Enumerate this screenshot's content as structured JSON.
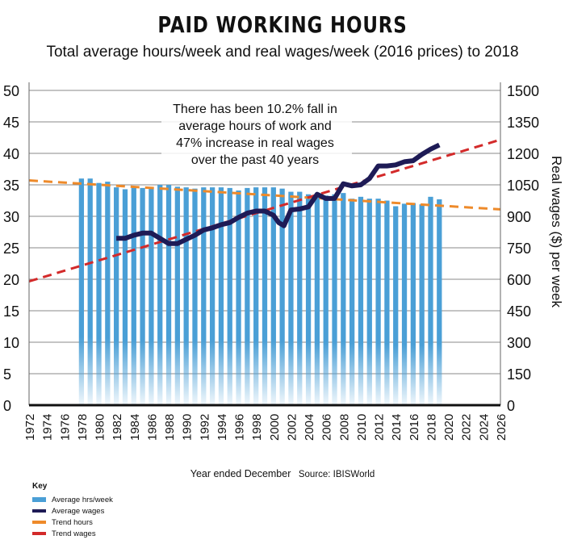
{
  "title": "PAID WORKING HOURS",
  "subtitle": "Total average hours/week and real wages/week (2016 prices) to 2018",
  "x_caption": "Year ended December",
  "source": "Source: IBISWorld",
  "key": {
    "title": "Key",
    "items": [
      {
        "label": "Average hrs/week",
        "color": "#4a9fd6",
        "style": "bar"
      },
      {
        "label": "Average wages",
        "color": "#1e1b56",
        "style": "line"
      },
      {
        "label": "Trend hours",
        "color": "#ee8a2a",
        "style": "line"
      },
      {
        "label": "Trend wages",
        "color": "#d32a2a",
        "style": "line"
      }
    ]
  },
  "chart_data": {
    "type": "bar+line",
    "annotation": [
      "There has been 10.2% fall in",
      "average hours of work and",
      "47% increase in real wages",
      "over the past 40 years"
    ],
    "x_range": [
      1972,
      2026
    ],
    "x_ticks": [
      1972,
      1974,
      1976,
      1978,
      1980,
      1982,
      1984,
      1986,
      1988,
      1990,
      1992,
      1994,
      1996,
      1998,
      2000,
      2002,
      2004,
      2006,
      2008,
      2010,
      2012,
      2014,
      2016,
      2018,
      2020,
      2022,
      2024,
      2026
    ],
    "y_left": {
      "label": "",
      "range": [
        0,
        50
      ],
      "ticks": [
        0,
        5,
        10,
        15,
        20,
        25,
        30,
        35,
        40,
        45,
        50
      ]
    },
    "y_right": {
      "label": "Real wages ($) per week",
      "range": [
        0,
        1500
      ],
      "ticks": [
        0,
        150,
        300,
        450,
        600,
        750,
        900,
        1050,
        1200,
        1350,
        1500
      ]
    },
    "hours": {
      "name": "Average hrs/week",
      "years": [
        1978,
        1979,
        1980,
        1981,
        1982,
        1983,
        1984,
        1985,
        1986,
        1987,
        1988,
        1989,
        1990,
        1991,
        1992,
        1993,
        1994,
        1995,
        1996,
        1997,
        1998,
        1999,
        2000,
        2001,
        2002,
        2003,
        2004,
        2005,
        2006,
        2007,
        2008,
        2009,
        2010,
        2011,
        2012,
        2013,
        2014,
        2015,
        2016,
        2017,
        2018,
        2019
      ],
      "values": [
        36.0,
        36.0,
        35.3,
        35.5,
        34.6,
        34.3,
        34.6,
        34.5,
        34.6,
        35.0,
        35.0,
        34.7,
        34.6,
        34.4,
        34.6,
        34.6,
        34.6,
        34.5,
        34.1,
        34.5,
        34.6,
        34.6,
        34.6,
        34.4,
        33.9,
        33.9,
        33.5,
        33.0,
        33.3,
        33.5,
        33.7,
        32.8,
        33.1,
        32.8,
        32.8,
        32.5,
        31.6,
        32.0,
        32.1,
        31.9,
        33.1,
        32.7
      ]
    },
    "wages": {
      "name": "Average wages",
      "years": [
        1982,
        1983,
        1984,
        1985,
        1986,
        1987,
        1988,
        1989,
        1990,
        1991,
        1992,
        1993,
        1994,
        1995,
        1996,
        1997,
        1998,
        1999,
        2000,
        2000.6,
        2001.2,
        2002,
        2003,
        2004,
        2005,
        2006,
        2007,
        2008,
        2009,
        2010,
        2011,
        2012,
        2013,
        2014,
        2015,
        2016,
        2017,
        2018,
        2019
      ],
      "values": [
        795,
        795,
        810,
        820,
        820,
        795,
        770,
        770,
        790,
        810,
        835,
        845,
        860,
        870,
        895,
        915,
        925,
        925,
        905,
        870,
        855,
        930,
        935,
        945,
        1005,
        985,
        985,
        1055,
        1045,
        1050,
        1080,
        1140,
        1140,
        1145,
        1160,
        1165,
        1195,
        1220,
        1240
      ]
    },
    "trend_hours": {
      "name": "Trend hours",
      "years": [
        1972,
        2026
      ],
      "values": [
        35.7,
        31.1
      ]
    },
    "trend_wages": {
      "name": "Trend wages",
      "years": [
        1972,
        2026
      ],
      "values": [
        590,
        1265
      ]
    }
  }
}
